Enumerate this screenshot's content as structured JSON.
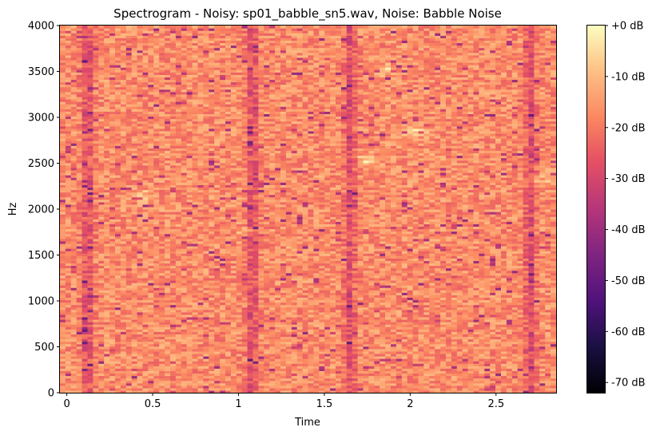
{
  "chart_data": {
    "type": "heatmap",
    "title": "Spectrogram - Noisy: sp01_babble_sn5.wav, Noise: Babble Noise",
    "xlabel": "Time",
    "ylabel": "Hz",
    "xlim": [
      -0.04,
      2.85
    ],
    "ylim": [
      0,
      4000
    ],
    "xticks": [
      {
        "value": 0,
        "label": "0"
      },
      {
        "value": 0.5,
        "label": "0.5"
      },
      {
        "value": 1,
        "label": "1"
      },
      {
        "value": 1.5,
        "label": "1.5"
      },
      {
        "value": 2,
        "label": "2"
      },
      {
        "value": 2.5,
        "label": "2.5"
      }
    ],
    "yticks": [
      {
        "value": 0,
        "label": "0"
      },
      {
        "value": 500,
        "label": "500"
      },
      {
        "value": 1000,
        "label": "1000"
      },
      {
        "value": 1500,
        "label": "1500"
      },
      {
        "value": 2000,
        "label": "2000"
      },
      {
        "value": 2500,
        "label": "2500"
      },
      {
        "value": 3000,
        "label": "3000"
      },
      {
        "value": 3500,
        "label": "3500"
      },
      {
        "value": 4000,
        "label": "4000"
      }
    ],
    "colorbar": {
      "range": [
        -72,
        0
      ],
      "colormap": "magma",
      "ticks": [
        {
          "value": 0,
          "label": "+0 dB"
        },
        {
          "value": -10,
          "label": "-10 dB"
        },
        {
          "value": -20,
          "label": "-20 dB"
        },
        {
          "value": -30,
          "label": "-30 dB"
        },
        {
          "value": -40,
          "label": "-40 dB"
        },
        {
          "value": -50,
          "label": "-50 dB"
        },
        {
          "value": -60,
          "label": "-60 dB"
        },
        {
          "value": -70,
          "label": "-70 dB"
        }
      ]
    },
    "grid": false,
    "typical_level_db": -17,
    "low_energy_times": [
      0.12,
      1.08,
      1.65,
      2.7
    ],
    "high_energy_regions": [
      {
        "time": 2.02,
        "hz": 2850,
        "db": -4
      },
      {
        "time": 1.75,
        "hz": 2540,
        "db": -5
      },
      {
        "time": 2.78,
        "hz": 2330,
        "db": -6
      },
      {
        "time": 0.45,
        "hz": 2150,
        "db": -8
      },
      {
        "time": 1.85,
        "hz": 3520,
        "db": -7
      },
      {
        "time": 1.05,
        "hz": 1750,
        "db": -8
      }
    ]
  }
}
